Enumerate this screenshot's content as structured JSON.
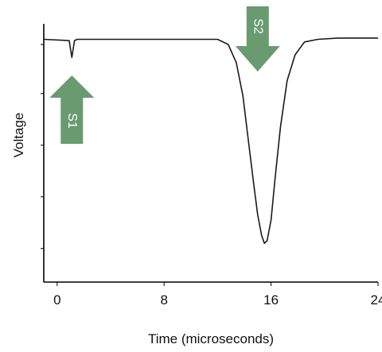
{
  "chart_data": {
    "type": "line",
    "xlabel": "Time (microseconds)",
    "ylabel": "Voltage",
    "xlim": [
      -1,
      24
    ],
    "ylim": [
      0,
      1
    ],
    "x_ticks": [
      0,
      8,
      16,
      24
    ],
    "x_tick_labels": [
      "0",
      "8",
      "16",
      "24"
    ],
    "grid": false,
    "series": [
      {
        "x": [
          -1,
          0.9,
          1.1,
          1.3,
          1.5,
          1.8,
          12.0,
          12.8,
          13.4,
          13.9,
          14.3,
          14.7,
          15.0,
          15.3,
          15.5,
          15.7,
          16.0,
          16.3,
          16.7,
          17.2,
          17.8,
          18.5,
          19.5,
          21.0,
          24.0
        ],
        "y": [
          0.94,
          0.935,
          0.87,
          0.935,
          0.94,
          0.94,
          0.94,
          0.92,
          0.85,
          0.72,
          0.55,
          0.38,
          0.26,
          0.18,
          0.15,
          0.16,
          0.24,
          0.4,
          0.6,
          0.78,
          0.88,
          0.93,
          0.94,
          0.945,
          0.945
        ]
      }
    ],
    "annotations": [
      {
        "label": "S1",
        "x": 1.1,
        "direction": "up"
      },
      {
        "label": "S2",
        "x": 15.0,
        "direction": "down"
      }
    ],
    "arrow_color": "#6a9a70"
  }
}
